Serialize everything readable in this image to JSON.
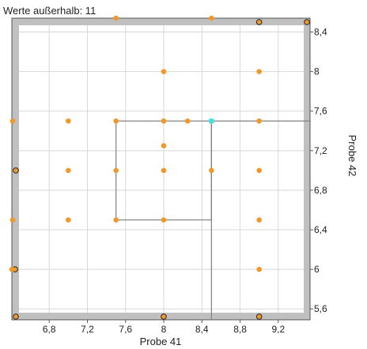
{
  "chart_data": {
    "type": "scatter",
    "annotation": "Werte außerhalb: 11",
    "xlabel": "Probe 41",
    "ylabel": "Probe 42",
    "xlim": [
      6.45,
      9.5
    ],
    "ylim": [
      5.53,
      8.5
    ],
    "xticks": [
      6.8,
      7.2,
      7.6,
      8,
      8.4,
      8.8,
      9.2
    ],
    "yticks": [
      5.6,
      6,
      6.4,
      6.8,
      7.2,
      7.6,
      8,
      8.4
    ],
    "tick_labels_x": [
      "6,8",
      "7,2",
      "7,6",
      "8",
      "8,4",
      "8,8",
      "9,2"
    ],
    "tick_labels_y": [
      "5,6",
      "6",
      "6,4",
      "6,8",
      "7,2",
      "7,6",
      "8",
      "8,4"
    ],
    "grid": true,
    "points": [
      {
        "x": 7.0,
        "y": 7.5
      },
      {
        "x": 7.0,
        "y": 7.0
      },
      {
        "x": 7.0,
        "y": 6.5
      },
      {
        "x": 7.5,
        "y": 7.5
      },
      {
        "x": 7.5,
        "y": 7.0
      },
      {
        "x": 7.5,
        "y": 6.5
      },
      {
        "x": 8.0,
        "y": 8.0
      },
      {
        "x": 8.0,
        "y": 7.5
      },
      {
        "x": 8.0,
        "y": 7.25
      },
      {
        "x": 8.0,
        "y": 7.0
      },
      {
        "x": 8.0,
        "y": 6.5
      },
      {
        "x": 8.25,
        "y": 7.5
      },
      {
        "x": 8.5,
        "y": 7.0
      },
      {
        "x": 9.0,
        "y": 8.0
      },
      {
        "x": 9.0,
        "y": 7.5
      },
      {
        "x": 9.0,
        "y": 7.0
      },
      {
        "x": 9.0,
        "y": 6.5
      },
      {
        "x": 9.0,
        "y": 6.0
      }
    ],
    "outliers": [
      {
        "edge": "top",
        "x": 7.5
      },
      {
        "edge": "top",
        "x": 8.5
      },
      {
        "edge": "top",
        "x": 9.0
      },
      {
        "edge": "top-right"
      },
      {
        "edge": "left",
        "y": 7.5
      },
      {
        "edge": "left",
        "y": 7.0
      },
      {
        "edge": "left",
        "y": 6.5
      },
      {
        "edge": "left",
        "y": 6.0
      },
      {
        "edge": "bottom",
        "x": 8.0
      },
      {
        "edge": "bottom",
        "x": 9.0
      },
      {
        "edge": "bottom-left"
      }
    ],
    "selected_point": {
      "x": 8.5,
      "y": 7.5
    },
    "range_box": {
      "x": [
        7.5,
        8.5
      ],
      "y": [
        6.5,
        7.5
      ]
    },
    "colors": {
      "point": "#f0992a",
      "point_outline": "#333333",
      "selected": "#3ee0e0",
      "frame": "#c0c0c0",
      "grid": "#d8d8d8",
      "guide": "#808080"
    }
  }
}
